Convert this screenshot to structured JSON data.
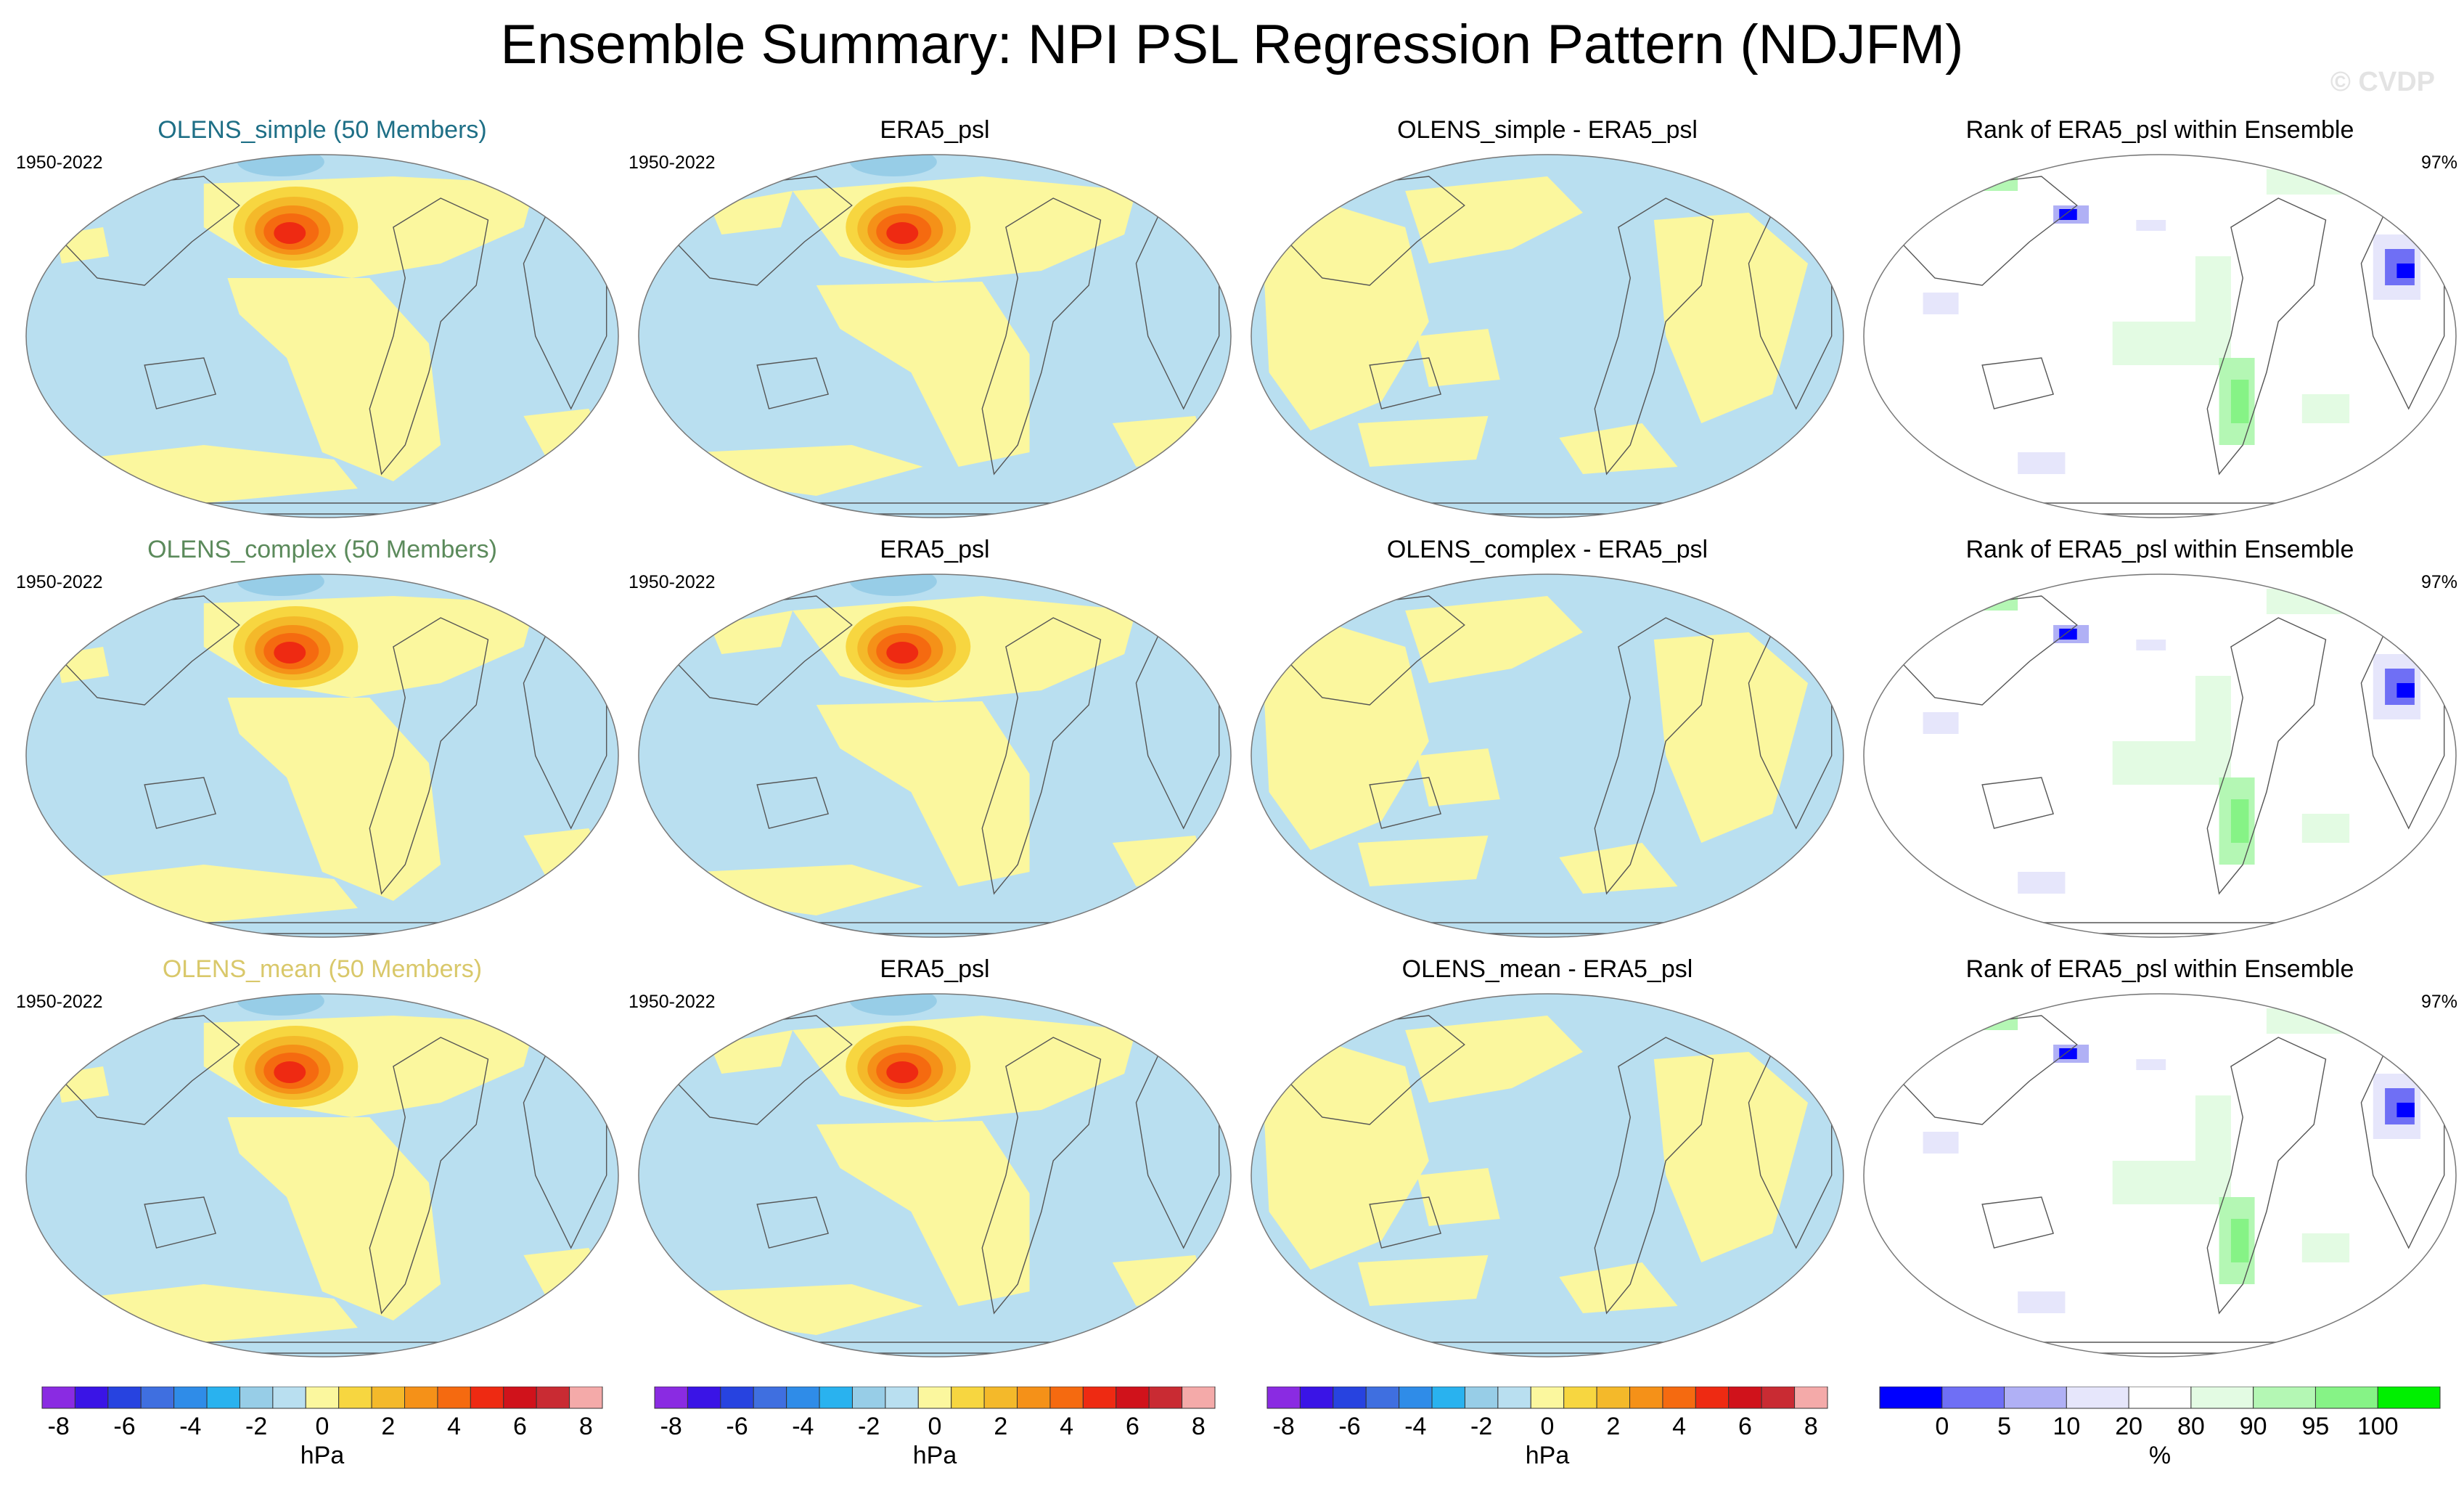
{
  "title": "Ensemble Summary: NPI PSL Regression Pattern (NDJFM)",
  "watermark": "© CVDP",
  "rows": [
    {
      "panels": [
        {
          "title": "OLENS_simple (50 Members)",
          "title_color": "#1e6f86",
          "period": "1950-2022",
          "type": "model"
        },
        {
          "title": "ERA5_psl",
          "title_color": "#000000",
          "period": "1950-2022",
          "type": "obs"
        },
        {
          "title": "OLENS_simple - ERA5_psl",
          "title_color": "#000000",
          "type": "diff"
        },
        {
          "title": "Rank of ERA5_psl within Ensemble",
          "title_color": "#000000",
          "percent": "97%",
          "type": "rank"
        }
      ]
    },
    {
      "panels": [
        {
          "title": "OLENS_complex (50 Members)",
          "title_color": "#5b8a5b",
          "period": "1950-2022",
          "type": "model"
        },
        {
          "title": "ERA5_psl",
          "title_color": "#000000",
          "period": "1950-2022",
          "type": "obs"
        },
        {
          "title": "OLENS_complex - ERA5_psl",
          "title_color": "#000000",
          "type": "diff"
        },
        {
          "title": "Rank of ERA5_psl within Ensemble",
          "title_color": "#000000",
          "percent": "97%",
          "type": "rank"
        }
      ]
    },
    {
      "panels": [
        {
          "title": "OLENS_mean (50 Members)",
          "title_color": "#d9c86a",
          "period": "1950-2022",
          "type": "model"
        },
        {
          "title": "ERA5_psl",
          "title_color": "#000000",
          "period": "1950-2022",
          "type": "obs"
        },
        {
          "title": "OLENS_mean - ERA5_psl",
          "title_color": "#000000",
          "type": "diff"
        },
        {
          "title": "Rank of ERA5_psl within Ensemble",
          "title_color": "#000000",
          "percent": "97%",
          "type": "rank"
        }
      ]
    }
  ],
  "colorbars": [
    {
      "label": "hPa",
      "tick_labels": [
        "-8",
        "-6",
        "-4",
        "-2",
        "0",
        "2",
        "4",
        "6",
        "8"
      ],
      "colors": [
        "#8a2be2",
        "#3a14e6",
        "#2743e0",
        "#3f6fe0",
        "#2f8ce8",
        "#29b2ef",
        "#97cde7",
        "#b9dff0",
        "#fbf79e",
        "#f7d640",
        "#f4b92a",
        "#f59118",
        "#f56a10",
        "#ee2a12",
        "#d0121b",
        "#c92b33",
        "#f4aaa9"
      ]
    },
    {
      "label": "hPa",
      "tick_labels": [
        "-8",
        "-6",
        "-4",
        "-2",
        "0",
        "2",
        "4",
        "6",
        "8"
      ],
      "colors": [
        "#8a2be2",
        "#3a14e6",
        "#2743e0",
        "#3f6fe0",
        "#2f8ce8",
        "#29b2ef",
        "#97cde7",
        "#b9dff0",
        "#fbf79e",
        "#f7d640",
        "#f4b92a",
        "#f59118",
        "#f56a10",
        "#ee2a12",
        "#d0121b",
        "#c92b33",
        "#f4aaa9"
      ]
    },
    {
      "label": "hPa",
      "tick_labels": [
        "-8",
        "-6",
        "-4",
        "-2",
        "0",
        "2",
        "4",
        "6",
        "8"
      ],
      "colors": [
        "#8a2be2",
        "#3a14e6",
        "#2743e0",
        "#3f6fe0",
        "#2f8ce8",
        "#29b2ef",
        "#97cde7",
        "#b9dff0",
        "#fbf79e",
        "#f7d640",
        "#f4b92a",
        "#f59118",
        "#f56a10",
        "#ee2a12",
        "#d0121b",
        "#c92b33",
        "#f4aaa9"
      ]
    },
    {
      "label": "%",
      "tick_labels": [
        "0",
        "5",
        "10",
        "20",
        "80",
        "90",
        "95",
        "100"
      ],
      "colors": [
        "#0000ff",
        "#6f6ff5",
        "#b0b0f5",
        "#e6e6fb",
        "#ffffff",
        "#e3fbe3",
        "#b4f7b4",
        "#86f386",
        "#00f000"
      ]
    }
  ],
  "chart_data": {
    "type": "heatmap",
    "title": "Ensemble Summary: NPI PSL Regression Pattern (NDJFM)",
    "period": "1950-2022",
    "variable": "PSL regression onto NPI",
    "units": [
      "hPa",
      "%"
    ],
    "contour_levels_hPa": [
      -8,
      -7,
      -6,
      -5,
      -4,
      -3,
      -2,
      -1,
      0,
      1,
      2,
      3,
      4,
      5,
      6,
      7,
      8
    ],
    "rank_levels_percent": [
      0,
      5,
      10,
      20,
      80,
      90,
      95,
      100
    ],
    "panels": [
      "OLENS_simple (50 Members)",
      "ERA5_psl",
      "OLENS_simple - ERA5_psl",
      "Rank of ERA5_psl within Ensemble",
      "OLENS_complex (50 Members)",
      "ERA5_psl",
      "OLENS_complex - ERA5_psl",
      "Rank of ERA5_psl within Ensemble",
      "OLENS_mean (50 Members)",
      "ERA5_psl",
      "OLENS_mean - ERA5_psl",
      "Rank of ERA5_psl within Ensemble"
    ],
    "rank_percent_within_ensemble": [
      97,
      97,
      97
    ]
  }
}
